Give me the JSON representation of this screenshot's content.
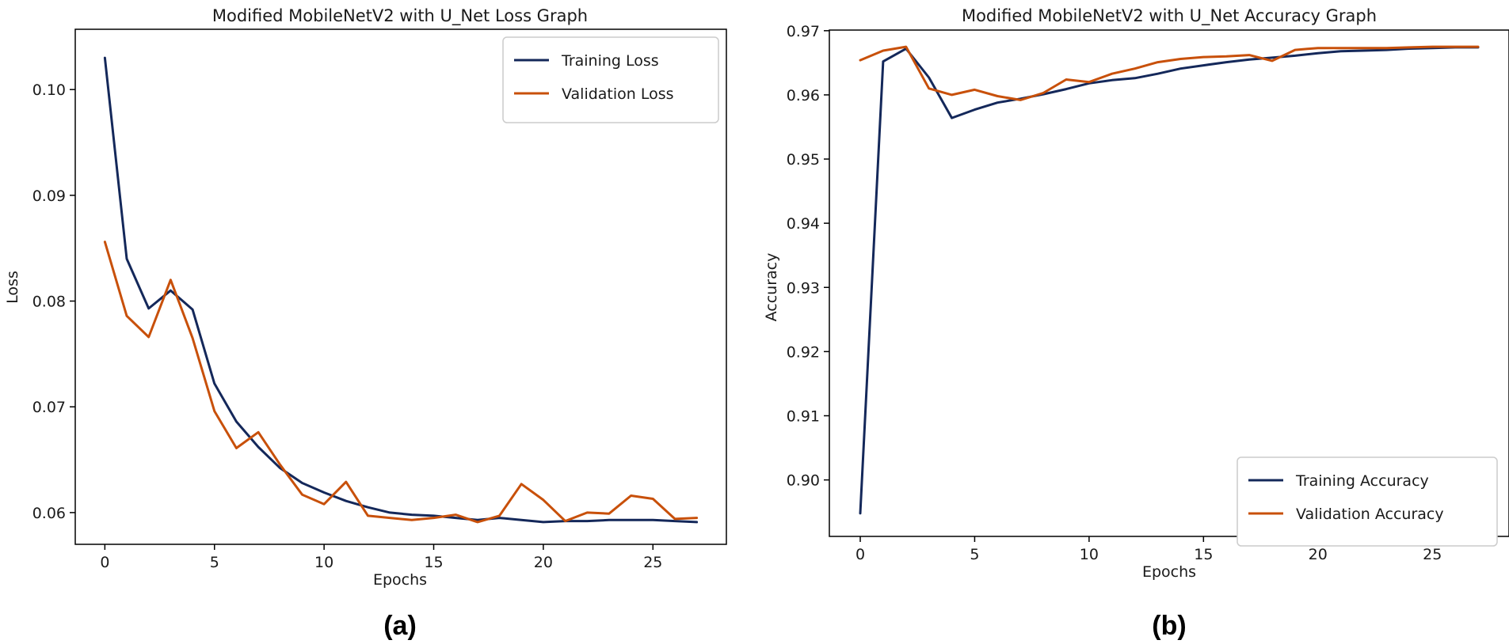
{
  "colors": {
    "training": "#14285a",
    "validation": "#c8500a"
  },
  "chart_data": [
    {
      "type": "line",
      "panel_label": "(a)",
      "title": "Modified MobileNetV2 with U_Net Loss Graph",
      "xlabel": "Epochs",
      "ylabel": "Loss",
      "xlim": [
        -1.35,
        28.35
      ],
      "ylim": [
        0.057,
        0.1057
      ],
      "xticks": [
        0,
        5,
        10,
        15,
        20,
        25
      ],
      "yticks": [
        0.06,
        0.07,
        0.08,
        0.09,
        0.1
      ],
      "ytick_labels": [
        "0.06",
        "0.07",
        "0.08",
        "0.09",
        "0.10"
      ],
      "legend_position": "upper-right",
      "x": [
        0,
        1,
        2,
        3,
        4,
        5,
        6,
        7,
        8,
        9,
        10,
        11,
        12,
        13,
        14,
        15,
        16,
        17,
        18,
        19,
        20,
        21,
        22,
        23,
        24,
        25,
        26,
        27
      ],
      "series": [
        {
          "name": "Training Loss",
          "values": [
            0.103,
            0.084,
            0.0793,
            0.081,
            0.0792,
            0.0722,
            0.0686,
            0.0662,
            0.0642,
            0.0628,
            0.0619,
            0.0611,
            0.0605,
            0.06,
            0.0598,
            0.0597,
            0.0595,
            0.0593,
            0.0595,
            0.0593,
            0.0591,
            0.0592,
            0.0592,
            0.0593,
            0.0593,
            0.0593,
            0.0592,
            0.0591
          ]
        },
        {
          "name": "Validation Loss",
          "values": [
            0.0856,
            0.0786,
            0.0766,
            0.082,
            0.0765,
            0.0696,
            0.0661,
            0.0676,
            0.0645,
            0.0617,
            0.0608,
            0.0629,
            0.0597,
            0.0595,
            0.0593,
            0.0595,
            0.0598,
            0.0591,
            0.0597,
            0.0627,
            0.0612,
            0.0592,
            0.06,
            0.0599,
            0.0616,
            0.0613,
            0.0594,
            0.0595
          ]
        }
      ]
    },
    {
      "type": "line",
      "panel_label": "(b)",
      "title": "Modified MobileNetV2 with U_Net Accuracy Graph",
      "xlabel": "Epochs",
      "ylabel": "Accuracy",
      "xlim": [
        -1.35,
        28.35
      ],
      "ylim": [
        0.8912,
        0.9701
      ],
      "xticks": [
        0,
        5,
        10,
        15,
        20,
        25
      ],
      "yticks": [
        0.9,
        0.91,
        0.92,
        0.93,
        0.94,
        0.95,
        0.96,
        0.97
      ],
      "ytick_labels": [
        "0.90",
        "0.91",
        "0.92",
        "0.93",
        "0.94",
        "0.95",
        "0.96",
        "0.97"
      ],
      "legend_position": "lower-right",
      "x": [
        0,
        1,
        2,
        3,
        4,
        5,
        6,
        7,
        8,
        9,
        10,
        11,
        12,
        13,
        14,
        15,
        16,
        17,
        18,
        19,
        20,
        21,
        22,
        23,
        24,
        25,
        26,
        27
      ],
      "series": [
        {
          "name": "Training Accuracy",
          "values": [
            0.8948,
            0.9652,
            0.9672,
            0.9627,
            0.9564,
            0.9577,
            0.9588,
            0.9594,
            0.9601,
            0.9609,
            0.9618,
            0.9623,
            0.9626,
            0.9633,
            0.9641,
            0.9646,
            0.9651,
            0.9655,
            0.9658,
            0.9661,
            0.9665,
            0.9668,
            0.9669,
            0.967,
            0.9672,
            0.9673,
            0.9674,
            0.9674
          ]
        },
        {
          "name": "Validation Accuracy",
          "values": [
            0.9654,
            0.9669,
            0.9675,
            0.961,
            0.96,
            0.9608,
            0.9598,
            0.9592,
            0.9603,
            0.9624,
            0.962,
            0.9633,
            0.9641,
            0.9651,
            0.9656,
            0.9659,
            0.966,
            0.9662,
            0.9653,
            0.967,
            0.9673,
            0.9673,
            0.9673,
            0.9673,
            0.9674,
            0.9675,
            0.9675,
            0.9675
          ]
        }
      ]
    }
  ]
}
